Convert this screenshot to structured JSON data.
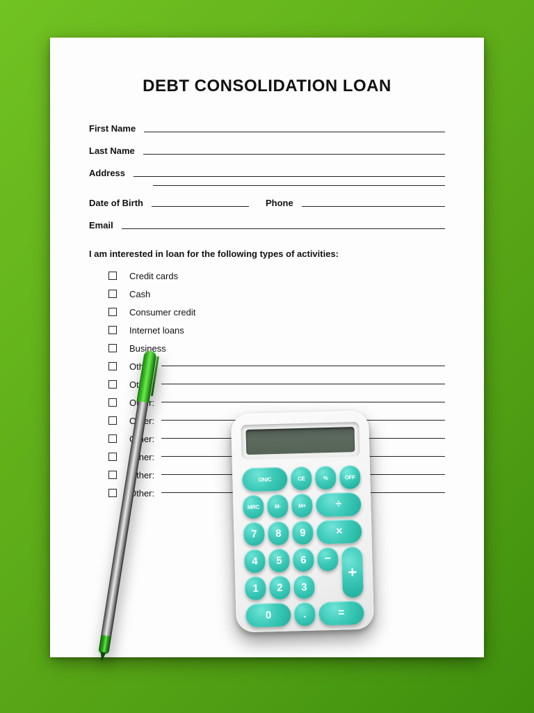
{
  "form": {
    "title": "DEBT CONSOLIDATION LOAN",
    "fields": {
      "first_name": "First Name",
      "last_name": "Last Name",
      "address": "Address",
      "dob": "Date of Birth",
      "phone": "Phone",
      "email": "Email"
    },
    "intro": "I am interested in loan for the following types of activities:",
    "checks": [
      {
        "label": "Credit cards",
        "line": false
      },
      {
        "label": "Cash",
        "line": false
      },
      {
        "label": "Consumer credit",
        "line": false
      },
      {
        "label": "Internet loans",
        "line": false
      },
      {
        "label": "Business",
        "line": false
      },
      {
        "label": "Other:",
        "line": true
      },
      {
        "label": "Other:",
        "line": true
      },
      {
        "label": "Other:",
        "line": true
      },
      {
        "label": "Other:",
        "line": true
      },
      {
        "label": "Other:",
        "line": true
      },
      {
        "label": "Other:",
        "line": true
      },
      {
        "label": "Other:",
        "line": true
      },
      {
        "label": "Other:",
        "line": true
      }
    ]
  },
  "calculator": {
    "screen_value": "",
    "keys": {
      "on": "ON/C",
      "ce": "CE",
      "pct": "%",
      "off": "OFF",
      "mrc": "MRC",
      "mm": "M-",
      "mp": "M+",
      "div": "÷",
      "k7": "7",
      "k8": "8",
      "k9": "9",
      "mul": "×",
      "k4": "4",
      "k5": "5",
      "k6": "6",
      "sub": "−",
      "k1": "1",
      "k2": "2",
      "k3": "3",
      "k0": "0",
      "dot": ".",
      "eq": "=",
      "plus": "+"
    },
    "colors": {
      "body": "#f5f5f5",
      "key": "#3dcab9",
      "key_highlight": "#6fe4d6",
      "key_shadow": "#1fae9d",
      "screen": "#566457"
    }
  },
  "pen": {
    "cap_color": "#3dbf2a",
    "barrel_color": "#9a9a9a",
    "grip_color": "#34b322"
  },
  "surface": {
    "background_color": "#57a516"
  }
}
